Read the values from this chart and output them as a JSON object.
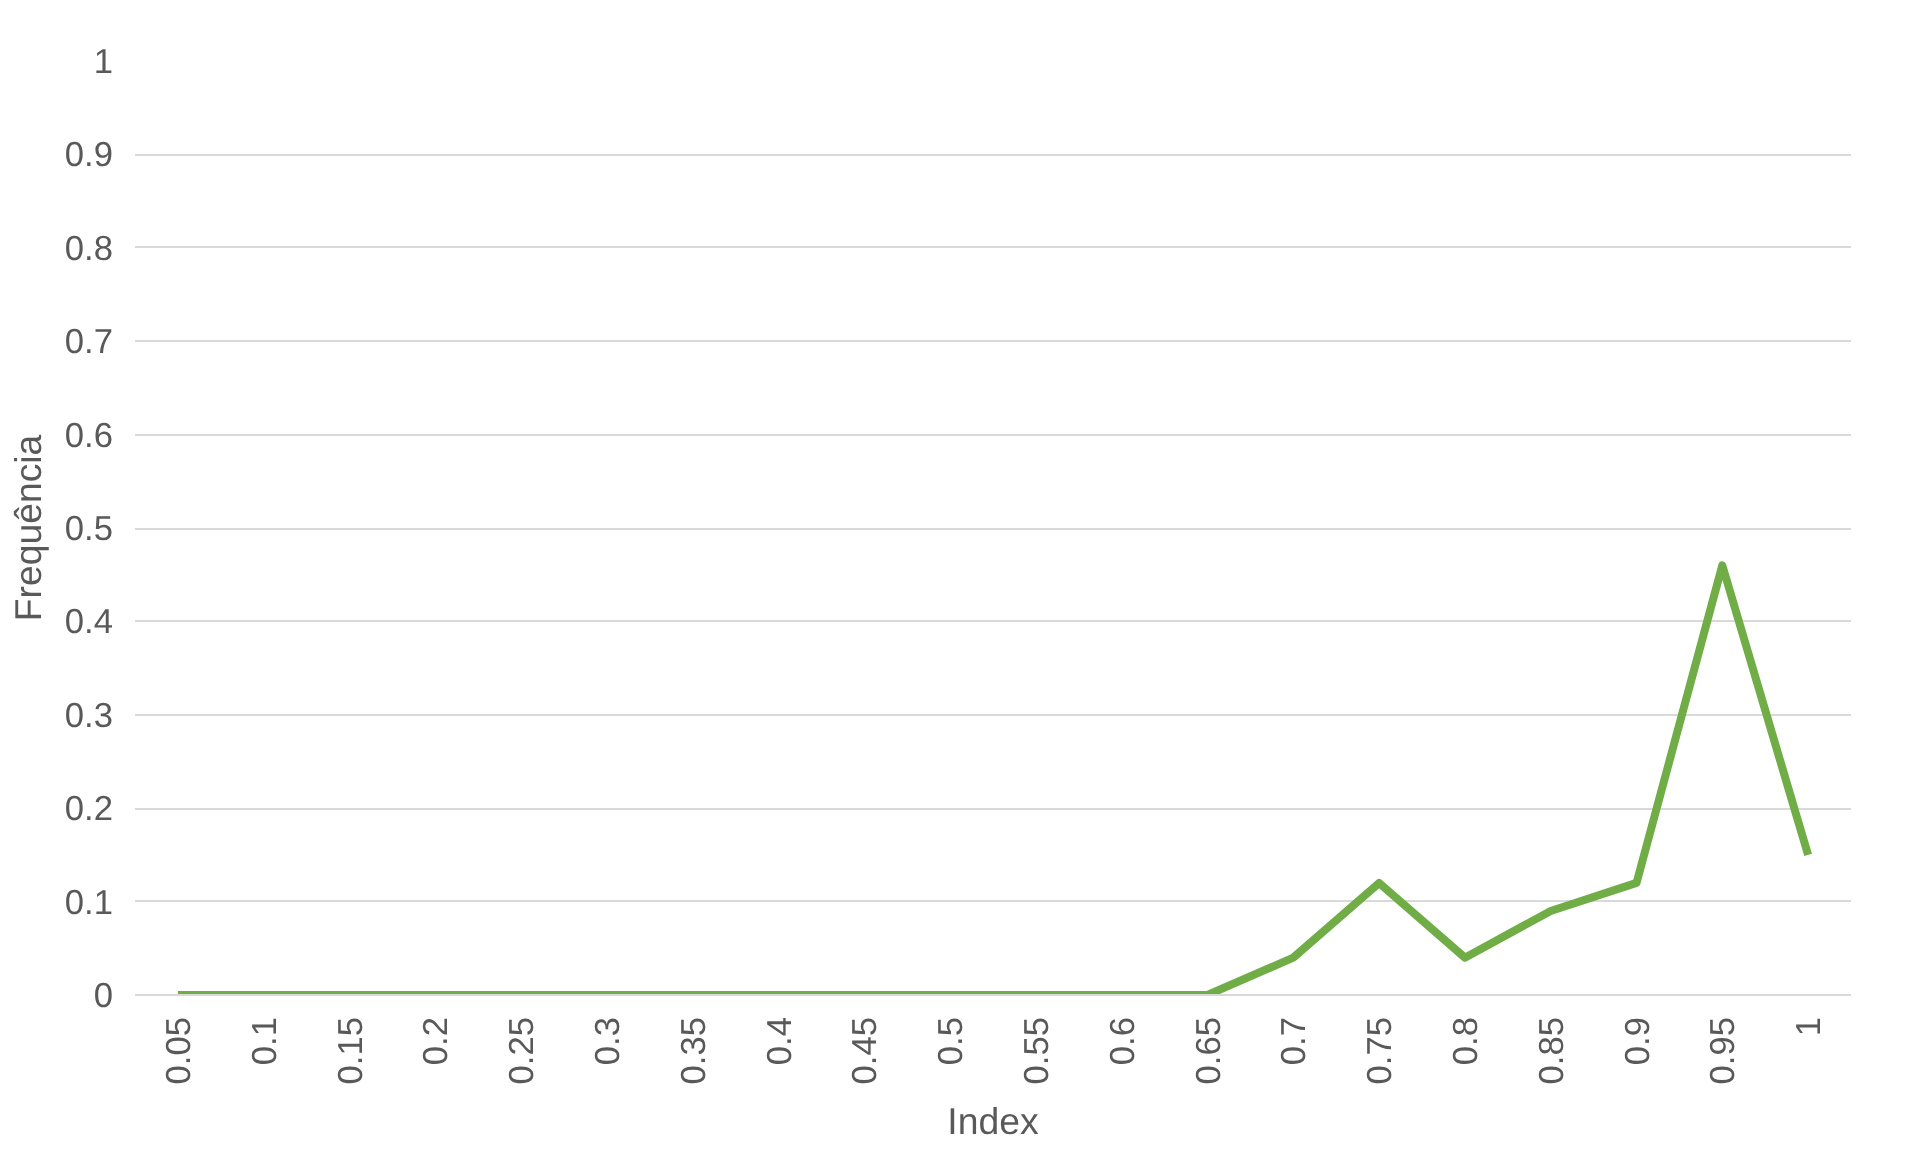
{
  "chart_data": {
    "type": "line",
    "xlabel": "Index",
    "ylabel": "Frequência",
    "categories": [
      "0.05",
      "0.1",
      "0.15",
      "0.2",
      "0.25",
      "0.3",
      "0.35",
      "0.4",
      "0.45",
      "0.5",
      "0.55",
      "0.6",
      "0.65",
      "0.7",
      "0.75",
      "0.8",
      "0.85",
      "0.9",
      "0.95",
      "1"
    ],
    "series": [
      {
        "color": "#70ad47",
        "values": [
          0,
          0,
          0,
          0,
          0,
          0,
          0,
          0,
          0,
          0,
          0,
          0,
          0,
          0.04,
          0.12,
          0.04,
          0.09,
          0.12,
          0.46,
          0.15
        ]
      }
    ],
    "ylim": [
      0,
      1
    ],
    "yticks": [
      0,
      0.1,
      0.2,
      0.3,
      0.4,
      0.5,
      0.6,
      0.7,
      0.8,
      0.9,
      1
    ],
    "grid": "y",
    "line_style": "solid",
    "marker": "none"
  }
}
